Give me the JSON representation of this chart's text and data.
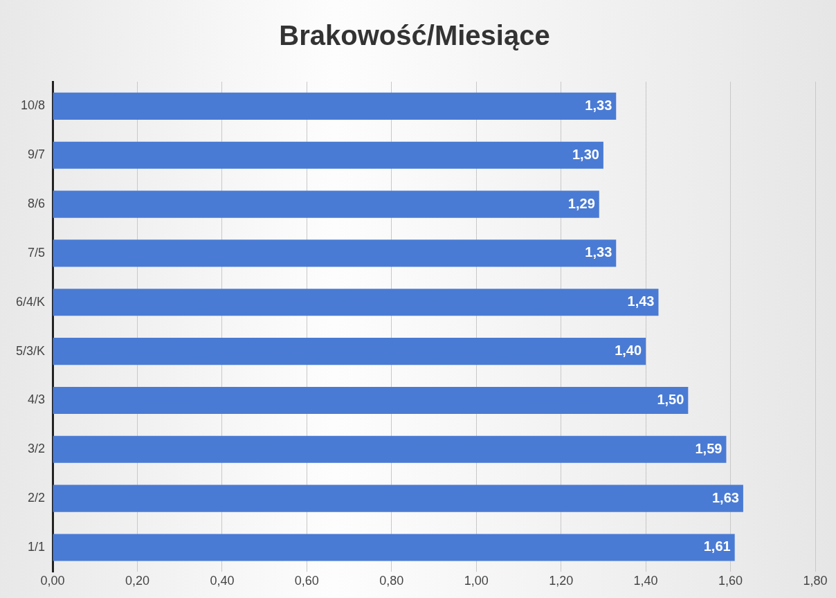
{
  "chart_data": {
    "type": "bar",
    "orientation": "horizontal",
    "title": "Brakowość/Miesiące",
    "categories": [
      "10/8",
      "9/7",
      "8/6",
      "7/5",
      "6/4/K",
      "5/3/K",
      "4/3",
      "3/2",
      "2/2",
      "1/1"
    ],
    "values": [
      1.33,
      1.3,
      1.29,
      1.33,
      1.43,
      1.4,
      1.5,
      1.59,
      1.63,
      1.61
    ],
    "value_labels": [
      "1,33",
      "1,30",
      "1,29",
      "1,33",
      "1,43",
      "1,40",
      "1,50",
      "1,59",
      "1,63",
      "1,61"
    ],
    "color": "#4a7bd4",
    "xlim": [
      0,
      1.8
    ],
    "xticks": [
      {
        "value": 0,
        "label": "0,00"
      },
      {
        "value": 0.2,
        "label": "0,20"
      },
      {
        "value": 0.4,
        "label": "0,40"
      },
      {
        "value": 0.6,
        "label": "0,60"
      },
      {
        "value": 0.8,
        "label": "0,80"
      },
      {
        "value": 1.0,
        "label": "1,00"
      },
      {
        "value": 1.2,
        "label": "1,20"
      },
      {
        "value": 1.4,
        "label": "1,40"
      },
      {
        "value": 1.6,
        "label": "1,60"
      },
      {
        "value": 1.8,
        "label": "1,80"
      }
    ],
    "grid": "x"
  }
}
